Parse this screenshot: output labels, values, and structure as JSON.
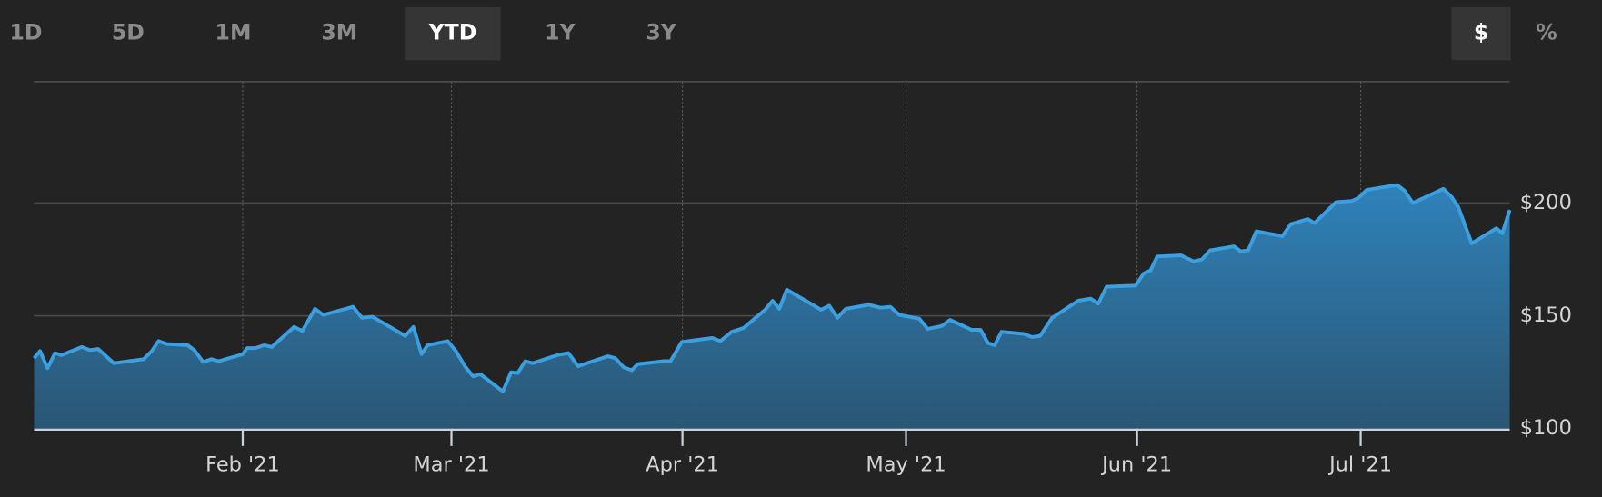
{
  "range_buttons": {
    "labels": [
      "1D",
      "5D",
      "1M",
      "3M",
      "YTD",
      "1Y",
      "3Y"
    ],
    "active_index": 4
  },
  "unit_buttons": {
    "labels": [
      "$",
      "%"
    ],
    "active_index": 0
  },
  "chart_data": {
    "type": "area",
    "color": "#3b9fe0",
    "x": [
      4,
      4.8,
      5.8,
      6.8,
      7.7,
      10.4,
      11.5,
      12.6,
      14.7,
      18.7,
      19.8,
      20.7,
      21.8,
      24.6,
      25.5,
      26.7,
      27.8,
      28.8,
      32,
      32.6,
      33.7,
      34.9,
      35.9,
      38.9,
      40,
      41.7,
      42.8,
      46.8,
      48,
      49.4,
      53.8,
      54.9,
      56,
      56.8,
      59.5,
      60.6,
      61.8,
      62.9,
      63.9,
      66.9,
      68,
      68.9,
      69.9,
      70.9,
      74.2,
      75.7,
      77,
      81,
      82,
      83.1,
      84.2,
      85,
      88.5,
      89.4,
      90.9,
      95,
      96.1,
      97.6,
      99.2,
      102.1,
      103.1,
      104,
      105,
      109.6,
      110.7,
      111.8,
      112.9,
      116,
      117.6,
      118.9,
      120.1,
      122.8,
      123.9,
      125.8,
      126.9,
      129.8,
      131,
      132,
      132.9,
      133.8,
      136.8,
      137.9,
      139,
      140.6,
      144.1,
      145.8,
      146.8,
      147.9,
      151.8,
      152.9,
      153.8,
      154.7,
      157.9,
      159.6,
      160.7,
      161.8,
      165,
      165.9,
      166.9,
      168,
      171.5,
      172.6,
      174.9,
      175.8,
      178.7,
      180.8,
      181.7,
      182.8,
      186.9,
      187.9,
      189,
      193.1,
      194.2,
      195.1,
      196.9,
      200.2,
      201,
      202
    ],
    "values": [
      131.2,
      134.4,
      126.8,
      133.5,
      132.6,
      136.2,
      134.8,
      135.3,
      129,
      130.8,
      134.4,
      138.8,
      137.5,
      137,
      134.8,
      129.5,
      130.8,
      129.9,
      133,
      135.7,
      135.7,
      137,
      136.2,
      145.1,
      143.3,
      153.1,
      150.4,
      154,
      149.1,
      149.6,
      141.1,
      145.1,
      133,
      137,
      138.8,
      134.4,
      127.7,
      123.2,
      124.1,
      116.5,
      125,
      124.6,
      129.9,
      129,
      132.6,
      133.5,
      127.7,
      132.1,
      131.2,
      127.2,
      125.9,
      128.6,
      129.9,
      129.9,
      138.4,
      140.2,
      138.8,
      142.9,
      144.6,
      152.7,
      156.7,
      153.1,
      161.6,
      152.7,
      154.5,
      149.1,
      153.1,
      154.9,
      153.6,
      154,
      150.4,
      148.7,
      144.2,
      145.5,
      148.2,
      143.8,
      143.8,
      137.9,
      137,
      142.9,
      142,
      140.6,
      141.1,
      149.1,
      156.7,
      157.6,
      155.4,
      162.9,
      163.4,
      168.8,
      170.1,
      176.3,
      176.8,
      174.1,
      175,
      179,
      180.8,
      178.6,
      179,
      187.5,
      185.3,
      190.6,
      192.9,
      191.1,
      200.4,
      200.9,
      202.2,
      205.8,
      208,
      205.4,
      200,
      206.3,
      202.7,
      198.2,
      182.1,
      188.8,
      186.6,
      196.9
    ],
    "xlim": [
      4,
      202
    ],
    "xticks": [
      {
        "value": 32,
        "label": "Feb '21"
      },
      {
        "value": 60,
        "label": "Mar '21"
      },
      {
        "value": 91,
        "label": "Apr '21"
      },
      {
        "value": 121,
        "label": "May '21"
      },
      {
        "value": 152,
        "label": "Jun '21"
      },
      {
        "value": 182,
        "label": "Jul '21"
      }
    ],
    "ylim": [
      100,
      252
    ],
    "yticks": [
      {
        "value": 100,
        "label": "$100"
      },
      {
        "value": 150,
        "label": "$150"
      },
      {
        "value": 200,
        "label": "$200"
      }
    ],
    "grid": true
  }
}
